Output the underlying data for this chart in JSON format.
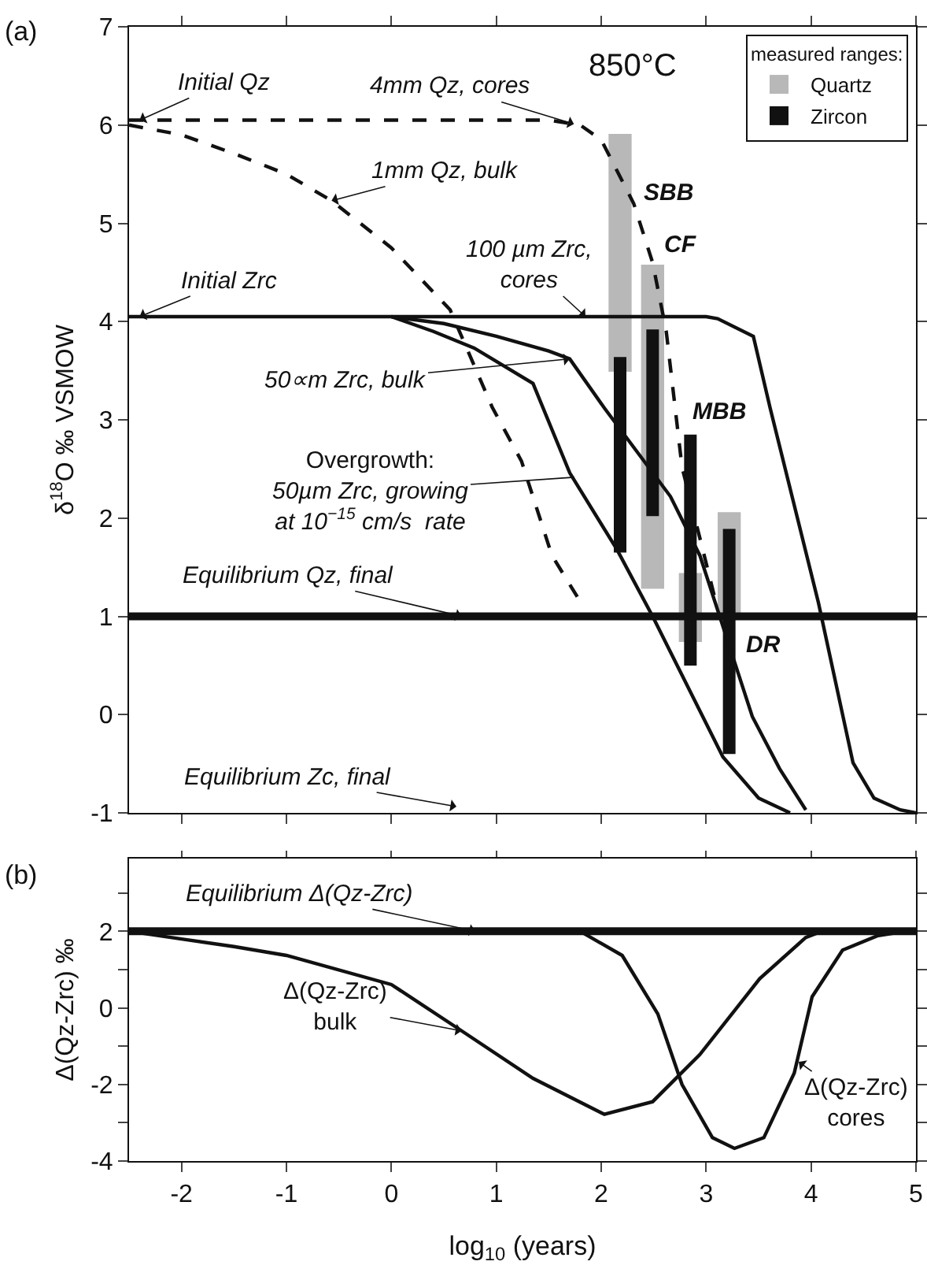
{
  "chart_data": [
    {
      "type": "line",
      "title": "(a)",
      "ylabel": "δ$^{18}$O ‰ VSMOW",
      "xlim": [
        -2.5,
        5
      ],
      "ylim": [
        -1,
        7
      ],
      "xticks": [
        -2,
        -1,
        0,
        1,
        2,
        3,
        4,
        5
      ],
      "yticks": [
        -1,
        0,
        1,
        2,
        3,
        4,
        5,
        6,
        7
      ],
      "tick_labels": "y",
      "marker": "none",
      "legend": "top right",
      "legend_title": "measured ranges:",
      "series": [
        {
          "name": "Quartz",
          "type": "bar",
          "color": "#b8b8b8",
          "x": [
            2.18,
            2.49,
            2.85,
            3.22
          ],
          "base": [
            3.49,
            1.28,
            0.74,
            1.0
          ],
          "values": [
            2.42,
            3.3,
            0.7,
            1.06
          ]
        },
        {
          "color": "#111111",
          "line_style": "dashed",
          "x": [
            -2.5,
            1.5,
            1.8,
            2.0,
            2.31,
            2.49,
            2.62,
            2.77,
            2.97,
            3.08
          ],
          "values": [
            6.05,
            6.05,
            6.0,
            5.85,
            5.2,
            4.6,
            3.9,
            2.52,
            1.67,
            1.2
          ]
        },
        {
          "color": "#111111",
          "line_style": "dashed",
          "x": [
            -2.5,
            -2,
            -1.5,
            -1,
            -0.57,
            0,
            0.56,
            0.96,
            1.24,
            1.53,
            1.8
          ],
          "values": [
            6.0,
            5.9,
            5.71,
            5.5,
            5.23,
            4.75,
            4.12,
            3.13,
            2.58,
            1.62,
            1.15
          ]
        },
        {
          "color": "#111111",
          "line_style": "solid",
          "x": [
            -2.5,
            3.0,
            3.11,
            3.45,
            3.61,
            4.07,
            4.4,
            4.6,
            4.85,
            5.0
          ],
          "values": [
            4.05,
            4.05,
            4.03,
            3.85,
            3.12,
            1.14,
            -0.49,
            -0.85,
            -0.97,
            -1.0
          ]
        },
        {
          "color": "#111111",
          "line_style": "solid",
          "x": [
            0,
            0.5,
            1.0,
            1.5,
            1.7,
            2.03,
            2.66,
            2.94,
            3.44,
            3.7,
            3.95
          ],
          "values": [
            4.05,
            3.98,
            3.85,
            3.7,
            3.62,
            3.12,
            2.22,
            1.62,
            -0.02,
            -0.55,
            -0.97
          ]
        },
        {
          "color": "#111111",
          "line_style": "solid",
          "x": [
            0,
            0.4,
            0.79,
            1.35,
            1.7,
            2.15,
            2.49,
            3.16,
            3.5,
            3.8
          ],
          "values": [
            4.05,
            3.9,
            3.73,
            3.37,
            2.46,
            1.68,
            1.0,
            -0.43,
            -0.85,
            -1.0
          ]
        },
        {
          "name": "Zircon",
          "type": "bar",
          "color": "#111111",
          "x": [
            2.18,
            2.49,
            2.85,
            3.22
          ],
          "base": [
            1.65,
            2.02,
            0.5,
            -0.4
          ],
          "values": [
            1.99,
            1.9,
            2.35,
            2.29
          ]
        }
      ],
      "ref_lines": [
        {
          "axis": "y",
          "value": 1,
          "color": "#111111"
        }
      ],
      "annotations": [
        "850°C",
        {
          "text": "Initial Qz",
          "x": -2.4,
          "y": 6.05
        },
        {
          "text": "4mm Qz, cores",
          "x": 1.74,
          "y": 6.01
        },
        {
          "text": "1mm Qz, bulk",
          "x": -0.57,
          "y": 5.23
        },
        {
          "text": "100 µm Zrc,\ncores",
          "x": 1.85,
          "y": 4.05
        },
        {
          "text": "Initial Zrc",
          "x": -2.4,
          "y": 4.05
        },
        {
          "text": "50∝m Zrc, bulk",
          "x": 1.7,
          "y": 3.62
        },
        "SBB",
        "CF",
        "MBB",
        "DR",
        "Overgrowth:\n50µm Zrc, growing\nat 10$^{−15}$ cm/s  rate",
        {
          "text": "Equilibrium Qz, final",
          "x": 0.67,
          "y": 1
        },
        "Equilibrium Zc, final"
      ]
    },
    {
      "type": "line",
      "title": "(b)",
      "xlabel": "log$_{10}$ (years)",
      "ylabel": "Δ(Qz-Zrc) ‰",
      "xlim": [
        -2.5,
        5
      ],
      "ylim": [
        -4,
        3.9
      ],
      "xticks": [
        -2,
        -1,
        0,
        1,
        2,
        3,
        4,
        5
      ],
      "yticks": [
        -4,
        {
          "value": -3,
          "label": null
        },
        -2,
        {
          "value": -1,
          "label": null
        },
        0,
        {
          "value": 1,
          "label": null
        },
        2,
        {
          "value": 3,
          "label": null
        }
      ],
      "marker": "none",
      "series": [
        {
          "color": "#111111",
          "x": [
            -2.5,
            -2,
            -1.5,
            -1,
            0,
            0.67,
            1.35,
            2.03,
            2.49,
            2.94,
            3.51,
            3.95,
            4.1,
            5.0
          ],
          "values": [
            2.0,
            1.8,
            1.6,
            1.37,
            0.61,
            -0.6,
            -1.84,
            -2.78,
            -2.45,
            -1.22,
            0.76,
            1.84,
            2.0,
            2.0
          ]
        },
        {
          "color": "#111111",
          "x": [
            -2.5,
            1.8,
            2.2,
            2.54,
            2.77,
            3.06,
            3.27,
            3.55,
            3.84,
            4.01,
            4.3,
            4.63,
            4.9,
            5.0
          ],
          "values": [
            2.0,
            2.0,
            1.37,
            -0.16,
            -2.0,
            -3.39,
            -3.67,
            -3.39,
            -1.7,
            0.29,
            1.51,
            1.88,
            2.0,
            2.0
          ]
        }
      ],
      "ref_lines": [
        {
          "axis": "y",
          "value": 2,
          "color": "#111111"
        }
      ],
      "annotations": [
        {
          "text": "Equilibrium Δ(Qz-Zrc)",
          "x": 0.8,
          "y": 2.0
        },
        {
          "text": "Δ(Qz-Zrc)\nbulk",
          "x": 0.67,
          "y": -0.6
        },
        "Δ(Qz-Zrc)\ncores"
      ]
    }
  ]
}
